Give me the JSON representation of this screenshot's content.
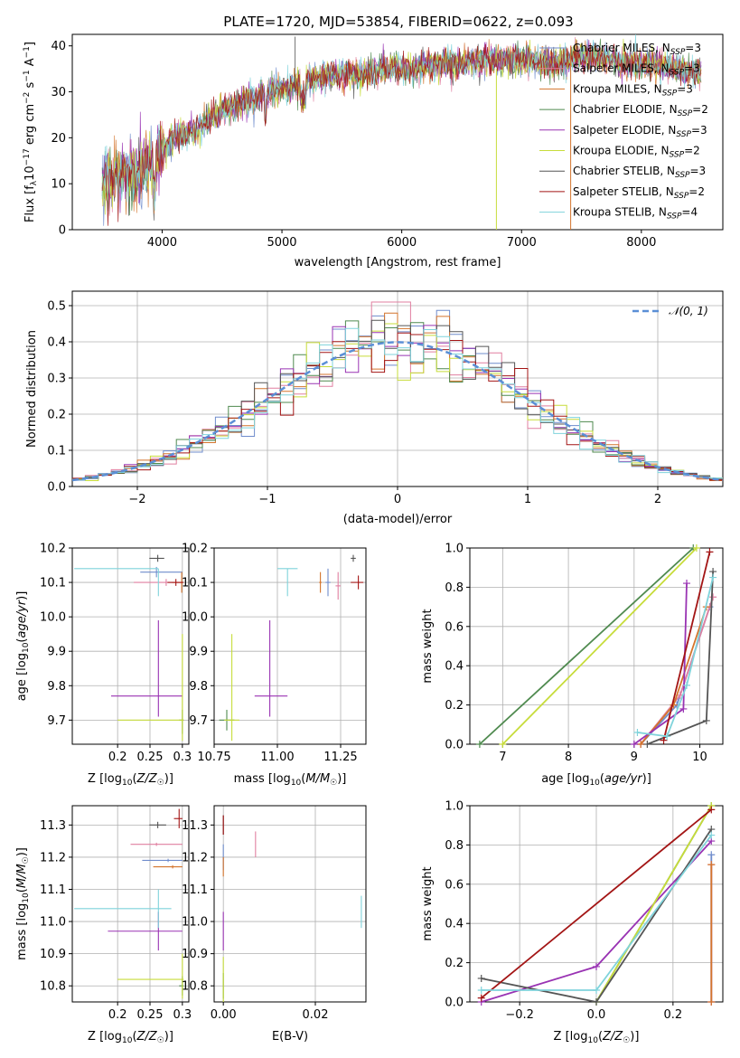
{
  "title": "PLATE=1720, MJD=53854, FIBERID=0622, z=0.093",
  "series_colors": [
    "#6f8ccc",
    "#e07fa0",
    "#d4742c",
    "#4f8a4f",
    "#9933b3",
    "#c7dc3a",
    "#555555",
    "#a31515",
    "#7fd3db"
  ],
  "legend_labels": [
    [
      "Chabrier MILES, N",
      "SSP",
      "=3"
    ],
    [
      "Salpeter MILES, N",
      "SSP",
      "=3"
    ],
    [
      "Kroupa MILES, N",
      "SSP",
      "=3"
    ],
    [
      "Chabrier ELODIE, N",
      "SSP",
      "=2"
    ],
    [
      "Salpeter ELODIE, N",
      "SSP",
      "=3"
    ],
    [
      "Kroupa ELODIE, N",
      "SSP",
      "=2"
    ],
    [
      "Chabrier STELIB, N",
      "SSP",
      "=3"
    ],
    [
      "Salpeter STELIB, N",
      "SSP",
      "=2"
    ],
    [
      "Kroupa STELIB, N",
      "SSP",
      "=4"
    ]
  ],
  "chart_data": [
    {
      "type": "line",
      "panel": "spectrum",
      "xlabel": "wavelength [Angstrom, rest frame]",
      "ylabel": "Flux [f",
      "xlim": [
        3250,
        8680
      ],
      "ylim": [
        0,
        42.5
      ],
      "xticks": [
        4000,
        5000,
        6000,
        7000,
        8000
      ],
      "yticks": [
        0,
        10,
        20,
        30,
        40
      ],
      "grid": false,
      "legend": "top-right",
      "continuum": [
        [
          3500,
          10
        ],
        [
          3700,
          12
        ],
        [
          3900,
          14
        ],
        [
          4100,
          20
        ],
        [
          4300,
          22
        ],
        [
          4500,
          26
        ],
        [
          4700,
          28
        ],
        [
          4900,
          30
        ],
        [
          5100,
          31
        ],
        [
          5300,
          33
        ],
        [
          5500,
          34
        ],
        [
          5700,
          34
        ],
        [
          5900,
          35
        ],
        [
          6100,
          35
        ],
        [
          6300,
          36
        ],
        [
          6500,
          36
        ],
        [
          6700,
          37
        ],
        [
          6900,
          37
        ],
        [
          7100,
          37
        ],
        [
          7300,
          36
        ],
        [
          7500,
          38
        ],
        [
          7700,
          37
        ],
        [
          7900,
          36
        ],
        [
          8100,
          36
        ],
        [
          8300,
          35
        ],
        [
          8500,
          34
        ]
      ]
    },
    {
      "type": "histogram",
      "panel": "residuals",
      "xlabel": "(data-model)/error",
      "ylabel": "Normed distribution",
      "xlim": [
        -2.5,
        2.5
      ],
      "ylim": [
        0,
        0.54
      ],
      "xticks": [
        -2,
        -1,
        0,
        1,
        2
      ],
      "yticks": [
        0.0,
        0.1,
        0.2,
        0.3,
        0.4,
        0.5
      ],
      "grid": true,
      "legend": "top-right",
      "legend_label": "N(0, 1)",
      "bin_width": 0.1,
      "reference": "normal, mean 0, sigma 1"
    },
    {
      "type": "scatter",
      "panel": "age_vs_Z",
      "xlabel": "Z [log10(Z/Z☉)]",
      "ylabel": "age [log10(age/yr)]",
      "xlim": [
        0.13,
        0.31
      ],
      "ylim": [
        9.63,
        10.2
      ],
      "xticks": [
        0.2,
        0.25,
        0.3
      ],
      "xticklabels": [
        "0.2",
        "0.25",
        "0.3"
      ],
      "yticks": [
        9.7,
        9.8,
        9.9,
        10.0,
        10.1,
        10.2
      ],
      "grid": true,
      "points": [
        {
          "x": 0.26,
          "y": 10.13,
          "xerr": [
            0.025,
            0.04
          ],
          "yerr": [
            0.015,
            0.015
          ]
        },
        {
          "x": 0.275,
          "y": 10.1,
          "xerr": [
            0.05,
            0.025
          ],
          "yerr": [
            0.01,
            0.01
          ]
        },
        {
          "x": 0.299,
          "y": 10.1,
          "xerr": [
            0.015,
            0.001
          ],
          "yerr": [
            0.03,
            0.03
          ]
        },
        {
          "x": 0.3,
          "y": 9.7,
          "xerr": [
            0.005,
            0.002
          ],
          "yerr": [
            0.04,
            0.03
          ]
        },
        {
          "x": 0.263,
          "y": 9.77,
          "xerr": [
            0.073,
            0.037
          ],
          "yerr": [
            0.06,
            0.22
          ]
        },
        {
          "x": 0.3,
          "y": 9.7,
          "xerr": [
            0.1,
            0.002
          ],
          "yerr": [
            0.06,
            0.25
          ]
        },
        {
          "x": 0.262,
          "y": 10.17,
          "xerr": [
            0.013,
            0.01
          ],
          "yerr": [
            0.01,
            0.01
          ]
        },
        {
          "x": 0.29,
          "y": 10.1,
          "xerr": [
            0.013,
            0.012
          ],
          "yerr": [
            0.01,
            0.01
          ]
        },
        {
          "x": 0.263,
          "y": 10.14,
          "xerr": [
            0.13,
            0.0
          ],
          "yerr": [
            0.08,
            0.0
          ]
        }
      ]
    },
    {
      "type": "scatter",
      "panel": "age_vs_mass",
      "xlabel": "mass [log10(M/M☉)]",
      "ylabel": "",
      "xlim": [
        10.75,
        11.35
      ],
      "ylim": [
        9.63,
        10.2
      ],
      "xticks": [
        10.75,
        11.0,
        11.25
      ],
      "xticklabels": [
        "10.75",
        "11.00",
        "11.25"
      ],
      "yticks": [
        9.7,
        9.8,
        9.9,
        10.0,
        10.1,
        10.2
      ],
      "grid": true,
      "points": [
        {
          "x": 11.2,
          "y": 10.1,
          "xerr": [
            0.01,
            0.01
          ],
          "yerr": [
            0.04,
            0.04
          ]
        },
        {
          "x": 11.24,
          "y": 10.09,
          "xerr": [
            0.01,
            0.01
          ],
          "yerr": [
            0.04,
            0.04
          ]
        },
        {
          "x": 11.17,
          "y": 10.1,
          "xerr": [
            0.005,
            0.005
          ],
          "yerr": [
            0.03,
            0.03
          ]
        },
        {
          "x": 10.8,
          "y": 9.7,
          "xerr": [
            0.03,
            0.03
          ],
          "yerr": [
            0.03,
            0.03
          ]
        },
        {
          "x": 10.97,
          "y": 9.77,
          "xerr": [
            0.06,
            0.07
          ],
          "yerr": [
            0.06,
            0.22
          ]
        },
        {
          "x": 10.82,
          "y": 9.7,
          "xerr": [
            0.03,
            0.03
          ],
          "yerr": [
            0.06,
            0.25
          ]
        },
        {
          "x": 11.3,
          "y": 10.17,
          "xerr": [
            0.01,
            0.01
          ],
          "yerr": [
            0.01,
            0.01
          ]
        },
        {
          "x": 11.32,
          "y": 10.1,
          "xerr": [
            0.03,
            0.02
          ],
          "yerr": [
            0.02,
            0.02
          ]
        },
        {
          "x": 11.04,
          "y": 10.14,
          "xerr": [
            0.04,
            0.04
          ],
          "yerr": [
            0.08,
            0.0
          ]
        }
      ]
    },
    {
      "type": "line",
      "panel": "mass_weight_vs_age",
      "xlabel": "age [log10(age/yr)]",
      "ylabel": "mass weight",
      "xlim": [
        6.5,
        10.35
      ],
      "ylim": [
        0,
        1.0
      ],
      "xticks": [
        7,
        8,
        9,
        10
      ],
      "yticks": [
        0.0,
        0.2,
        0.4,
        0.6,
        0.8,
        1.0
      ],
      "grid": true,
      "series": [
        {
          "x": [
            9.1,
            9.65,
            10.15
          ],
          "y": [
            0.0,
            0.2,
            0.7
          ]
        },
        {
          "x": [
            9.1,
            9.7,
            10.2
          ],
          "y": [
            0.0,
            0.25,
            0.75
          ]
        },
        {
          "x": [
            9.1,
            9.6,
            10.1
          ],
          "y": [
            0.0,
            0.2,
            0.7
          ]
        },
        {
          "x": [
            6.65,
            9.9
          ],
          "y": [
            0.0,
            1.0
          ]
        },
        {
          "x": [
            9.0,
            9.75,
            9.8
          ],
          "y": [
            0.0,
            0.18,
            0.82
          ]
        },
        {
          "x": [
            7.0,
            9.95
          ],
          "y": [
            0.0,
            1.0
          ]
        },
        {
          "x": [
            9.2,
            10.1,
            10.2
          ],
          "y": [
            0.0,
            0.12,
            0.88
          ]
        },
        {
          "x": [
            9.45,
            10.15
          ],
          "y": [
            0.02,
            0.98
          ]
        },
        {
          "x": [
            9.05,
            9.5,
            9.8,
            10.2
          ],
          "y": [
            0.06,
            0.04,
            0.3,
            0.85
          ]
        }
      ]
    },
    {
      "type": "scatter",
      "panel": "mass_vs_Z",
      "xlabel": "Z [log10(Z/Z☉)]",
      "ylabel": "mass [log10(M/M☉)]",
      "xlim": [
        0.13,
        0.31
      ],
      "ylim": [
        10.75,
        11.36
      ],
      "xticks": [
        0.2,
        0.25,
        0.3
      ],
      "xticklabels": [
        "0.2",
        "0.25",
        "0.3"
      ],
      "yticks": [
        10.8,
        10.9,
        11.0,
        11.1,
        11.2,
        11.3
      ],
      "grid": true,
      "points": [
        {
          "x": 0.278,
          "y": 11.19,
          "xerr": [
            0.04,
            0.022
          ],
          "yerr": [
            0.005,
            0.005
          ]
        },
        {
          "x": 0.26,
          "y": 11.24,
          "xerr": [
            0.04,
            0.04
          ],
          "yerr": [
            0.005,
            0.005
          ]
        },
        {
          "x": 0.285,
          "y": 11.17,
          "xerr": [
            0.03,
            0.015
          ],
          "yerr": [
            0.005,
            0.005
          ]
        },
        {
          "x": 0.3,
          "y": 10.8,
          "xerr": [
            0.005,
            0.002
          ],
          "yerr": [
            0.03,
            0.03
          ]
        },
        {
          "x": 0.263,
          "y": 10.97,
          "xerr": [
            0.078,
            0.037
          ],
          "yerr": [
            0.06,
            0.06
          ]
        },
        {
          "x": 0.3,
          "y": 10.82,
          "xerr": [
            0.1,
            0.002
          ],
          "yerr": [
            0.06,
            0.08
          ]
        },
        {
          "x": 0.262,
          "y": 11.3,
          "xerr": [
            0.013,
            0.013
          ],
          "yerr": [
            0.01,
            0.01
          ]
        },
        {
          "x": 0.295,
          "y": 11.32,
          "xerr": [
            0.008,
            0.005
          ],
          "yerr": [
            0.03,
            0.03
          ]
        },
        {
          "x": 0.263,
          "y": 11.04,
          "xerr": [
            0.13,
            0.02
          ],
          "yerr": [
            0.06,
            0.06
          ]
        }
      ]
    },
    {
      "type": "scatter",
      "panel": "mass_vs_EBV",
      "xlabel": "E(B-V)",
      "ylabel": "",
      "xlim": [
        -0.002,
        0.031
      ],
      "ylim": [
        10.75,
        11.36
      ],
      "xticks": [
        0.0,
        0.02
      ],
      "xticklabels": [
        "0.00",
        "0.02"
      ],
      "yticks": [
        10.8,
        10.9,
        11.0,
        11.1,
        11.2,
        11.3
      ],
      "grid": true,
      "points": [
        {
          "x": 0.0,
          "y": 11.2,
          "xerr": [
            0,
            0
          ],
          "yerr": [
            0.04,
            0.04
          ]
        },
        {
          "x": 0.007,
          "y": 11.24,
          "xerr": [
            0,
            0
          ],
          "yerr": [
            0.04,
            0.04
          ]
        },
        {
          "x": 0.0,
          "y": 11.17,
          "xerr": [
            0,
            0
          ],
          "yerr": [
            0.03,
            0.03
          ]
        },
        {
          "x": 0.0,
          "y": 10.8,
          "xerr": [
            0,
            0
          ],
          "yerr": [
            0.04,
            0.04
          ]
        },
        {
          "x": 0.0,
          "y": 10.97,
          "xerr": [
            0,
            0
          ],
          "yerr": [
            0.06,
            0.06
          ]
        },
        {
          "x": 0.0,
          "y": 10.82,
          "xerr": [
            0,
            0
          ],
          "yerr": [
            0.07,
            0.07
          ]
        },
        {
          "x": 0.0,
          "y": 11.3,
          "xerr": [
            0,
            0
          ],
          "yerr": [
            0.03,
            0.03
          ]
        },
        {
          "x": 0.0,
          "y": 11.3,
          "xerr": [
            0,
            0
          ],
          "yerr": [
            0.03,
            0.03
          ]
        },
        {
          "x": 0.03,
          "y": 11.03,
          "xerr": [
            0,
            0
          ],
          "yerr": [
            0.05,
            0.05
          ]
        }
      ]
    },
    {
      "type": "line",
      "panel": "mass_weight_vs_Z",
      "xlabel": "Z [log10(Z/Z☉)]",
      "ylabel": "mass weight",
      "xlim": [
        -0.33,
        0.33
      ],
      "ylim": [
        0,
        1.0
      ],
      "xticks": [
        -0.2,
        0.0,
        0.2
      ],
      "xticklabels": [
        "−0.2",
        "0.0",
        "0.2"
      ],
      "yticks": [
        0.0,
        0.2,
        0.4,
        0.6,
        0.8,
        1.0
      ],
      "grid": true,
      "series": [
        {
          "x": [
            0.3,
            0.3
          ],
          "y": [
            0.0,
            0.75
          ]
        },
        {
          "x": [
            0.3,
            0.3
          ],
          "y": [
            0.0,
            0.7
          ]
        },
        {
          "x": [
            0.3,
            0.3
          ],
          "y": [
            0.0,
            0.7
          ]
        },
        {
          "x": [
            0.0,
            0.3
          ],
          "y": [
            0.0,
            1.0
          ]
        },
        {
          "x": [
            -0.3,
            0.0,
            0.3
          ],
          "y": [
            0.0,
            0.18,
            0.82
          ]
        },
        {
          "x": [
            0.0,
            0.3
          ],
          "y": [
            0.0,
            1.0
          ]
        },
        {
          "x": [
            -0.3,
            0.0,
            0.3
          ],
          "y": [
            0.12,
            0.0,
            0.88
          ]
        },
        {
          "x": [
            -0.3,
            0.3
          ],
          "y": [
            0.02,
            0.98
          ]
        },
        {
          "x": [
            -0.3,
            0.0,
            0.3
          ],
          "y": [
            0.06,
            0.06,
            0.85
          ]
        }
      ]
    }
  ]
}
